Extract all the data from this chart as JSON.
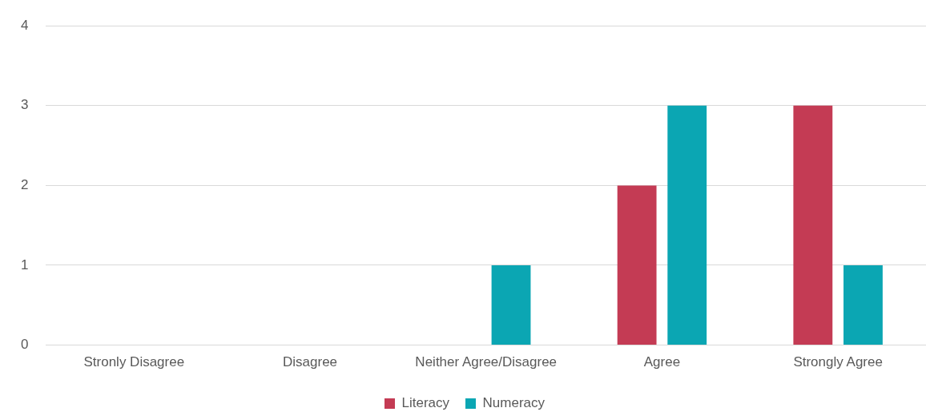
{
  "chart_data": {
    "type": "bar",
    "categories": [
      "Stronly Disagree",
      "Disagree",
      "Neither Agree/Disagree",
      "Agree",
      "Strongly Agree"
    ],
    "series": [
      {
        "name": "Literacy",
        "color": "#c43b54",
        "values": [
          0,
          0,
          0,
          2,
          3
        ]
      },
      {
        "name": "Numeracy",
        "color": "#0ba6b3",
        "values": [
          0,
          0,
          1,
          3,
          1
        ]
      }
    ],
    "ylim": [
      0,
      4
    ],
    "yticks": [
      0,
      1,
      2,
      3,
      4
    ],
    "grid": "y",
    "legend": "bottom"
  }
}
